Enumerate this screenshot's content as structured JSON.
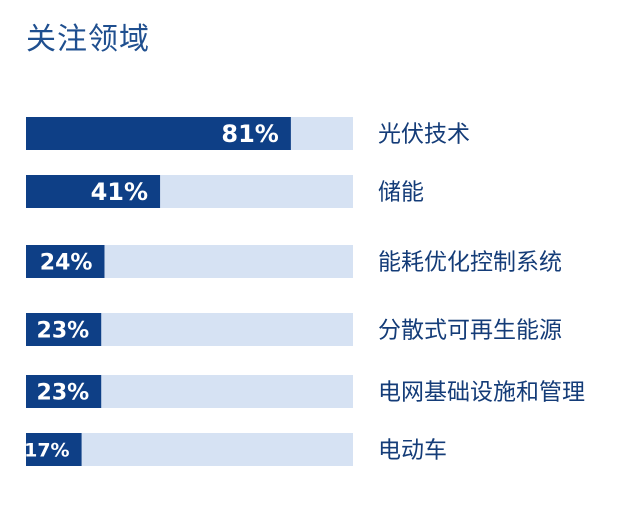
{
  "chart_data": {
    "type": "bar",
    "orientation": "horizontal",
    "title": "关注领域",
    "categories": [
      "光伏技术",
      "储能",
      "能耗优化控制系统",
      "分散式可再生能源",
      "电网基础设施和管理",
      "电动车"
    ],
    "values": [
      81,
      41,
      24,
      23,
      23,
      17
    ],
    "value_labels": [
      "81%",
      "41%",
      "24%",
      "23%",
      "23%",
      "17%"
    ],
    "xlim": [
      0,
      100
    ],
    "unit": "%",
    "colors": {
      "bar": "#0e3f86",
      "track": "#d6e2f3",
      "label": "#143c78",
      "title": "#1f4f8f"
    },
    "grid": false,
    "legend": "none"
  }
}
